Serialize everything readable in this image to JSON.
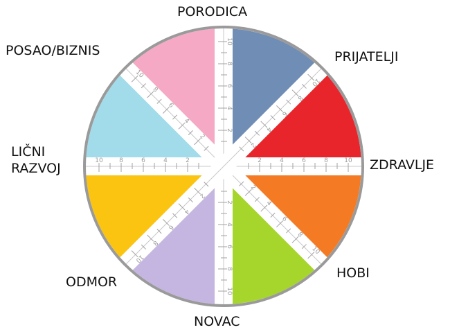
{
  "categories": [
    {
      "id": "porodica",
      "label": "PORODICA",
      "color": "#6f8db5"
    },
    {
      "id": "prijatelji",
      "label": "PRIJATELJI",
      "color": "#e8252b"
    },
    {
      "id": "zdravlje",
      "label": "ZDRAVLJE",
      "color": "#f47a24"
    },
    {
      "id": "hobi",
      "label": "HOBI",
      "color": "#a6d52c"
    },
    {
      "id": "novac",
      "label": "NOVAC",
      "color": "#c4b6e0"
    },
    {
      "id": "odmor",
      "label": "ODMOR",
      "color": "#fbc410"
    },
    {
      "id": "licni",
      "label_line1": "LIČNI",
      "label_line2": "RAZVOJ",
      "color": "#a2dbe9"
    },
    {
      "id": "posao",
      "label": "POSAO/BIZNIS",
      "color": "#f6a9c4"
    }
  ],
  "scale": {
    "ticks": [
      "2",
      "4",
      "6",
      "8",
      "10"
    ]
  },
  "colors": {
    "rim": "#9a9a9a",
    "axis_band": "#e9e9e9",
    "axis_tick": "#a0a0a0",
    "background": "#ffffff"
  }
}
